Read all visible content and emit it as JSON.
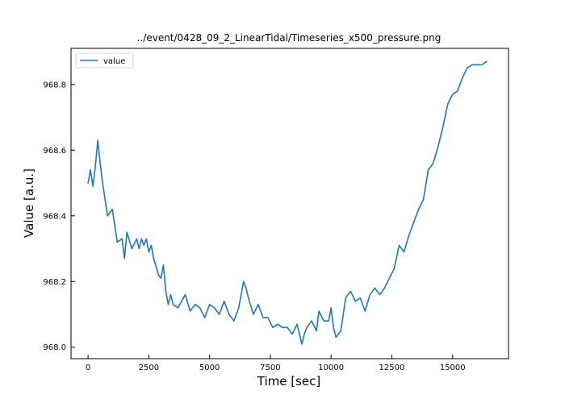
{
  "chart_data": {
    "type": "line",
    "title": "../event/0428_09_2_LinearTidal/Timeseries_x500_pressure.png",
    "xlabel": "Time [sec]",
    "ylabel": "Value [a.u.]",
    "xlim": [
      -700,
      17300
    ],
    "ylim": [
      967.965,
      968.91
    ],
    "xticks": [
      0,
      2500,
      5000,
      7500,
      10000,
      12500,
      15000
    ],
    "xtick_labels": [
      "0",
      "2500",
      "5000",
      "7500",
      "10000",
      "12500",
      "15000"
    ],
    "yticks": [
      968.0,
      968.2,
      968.4,
      968.6,
      968.8
    ],
    "ytick_labels": [
      "968.0",
      "968.2",
      "968.4",
      "968.6",
      "968.8"
    ],
    "grid": false,
    "legend": {
      "position": "top-left",
      "entries": [
        "value"
      ]
    },
    "series": [
      {
        "name": "value",
        "color": "#1f77b4",
        "x": [
          0,
          100,
          200,
          300,
          400,
          500,
          600,
          800,
          1000,
          1200,
          1400,
          1500,
          1600,
          1800,
          2000,
          2100,
          2200,
          2300,
          2400,
          2500,
          2600,
          2700,
          2900,
          3000,
          3100,
          3200,
          3300,
          3400,
          3500,
          3700,
          4000,
          4200,
          4400,
          4600,
          4800,
          5000,
          5200,
          5400,
          5600,
          5800,
          6000,
          6200,
          6400,
          6500,
          6600,
          6800,
          7000,
          7200,
          7400,
          7600,
          7800,
          8000,
          8200,
          8400,
          8600,
          8800,
          8900,
          9000,
          9200,
          9400,
          9500,
          9700,
          9900,
          10000,
          10100,
          10200,
          10400,
          10600,
          10800,
          11000,
          11200,
          11400,
          11600,
          11800,
          12000,
          12200,
          12400,
          12600,
          12800,
          13000,
          13200,
          13400,
          13600,
          13800,
          14000,
          14200,
          14400,
          14600,
          14800,
          15000,
          15200,
          15400,
          15600,
          15800,
          16000,
          16200,
          16400
        ],
        "values": [
          968.5,
          968.54,
          968.49,
          968.55,
          968.63,
          968.56,
          968.5,
          968.4,
          968.42,
          968.32,
          968.33,
          968.27,
          968.35,
          968.3,
          968.33,
          968.3,
          968.33,
          968.31,
          968.33,
          968.29,
          968.31,
          968.27,
          968.22,
          968.21,
          968.25,
          968.17,
          968.13,
          968.16,
          968.13,
          968.12,
          968.16,
          968.11,
          968.13,
          968.12,
          968.09,
          968.13,
          968.12,
          968.1,
          968.14,
          968.1,
          968.08,
          968.12,
          968.2,
          968.18,
          968.15,
          968.1,
          968.13,
          968.09,
          968.09,
          968.06,
          968.07,
          968.06,
          968.06,
          968.04,
          968.07,
          968.01,
          968.04,
          968.06,
          968.08,
          968.05,
          968.11,
          968.08,
          968.08,
          968.12,
          968.06,
          968.03,
          968.05,
          968.15,
          968.17,
          968.14,
          968.15,
          968.11,
          968.16,
          968.18,
          968.16,
          968.18,
          968.21,
          968.24,
          968.31,
          968.29,
          968.34,
          968.38,
          968.42,
          968.45,
          968.54,
          968.56,
          968.61,
          968.67,
          968.74,
          968.77,
          968.78,
          968.82,
          968.85,
          968.86,
          968.86,
          968.86,
          968.87
        ]
      }
    ]
  }
}
